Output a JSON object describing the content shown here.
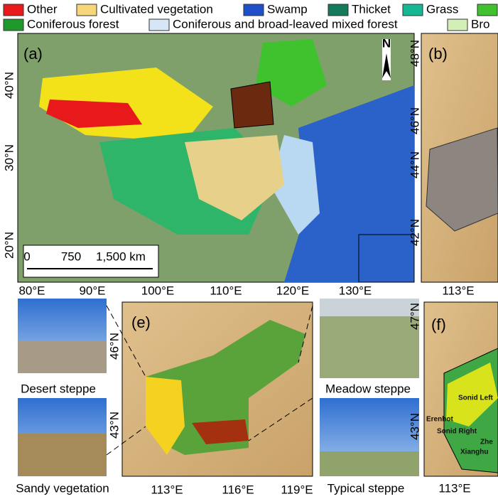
{
  "legend": [
    {
      "label": "Other",
      "color": "#e8191b"
    },
    {
      "label": "Cultivated vegetation",
      "color": "#f7d57a"
    },
    {
      "label": "Swamp",
      "color": "#1f4fc8"
    },
    {
      "label": "Thicket",
      "color": "#127a5a"
    },
    {
      "label": "Grass",
      "color": "#16b894"
    },
    {
      "color": "#3fc22d"
    },
    {
      "label": "Coniferous forest",
      "color": "#1f9a2a"
    },
    {
      "label": "Coniferous and broad-leaved mixed forest",
      "color": "#d6e6f7"
    },
    {
      "label": "Bro",
      "color": "#d3efb8"
    }
  ],
  "panel_a": {
    "label": "(a)",
    "north": "N",
    "lat_labels": [
      "40°N",
      "30°N",
      "20°N"
    ],
    "lon_labels": [
      "80°E",
      "90°E",
      "100°E",
      "110°E",
      "120°E",
      "130°E"
    ],
    "scale_bar": [
      "0",
      "750",
      "1,500 km"
    ]
  },
  "panel_b": {
    "label": "(b)",
    "lat_labels": [
      "48°N",
      "46°N",
      "44°N",
      "42°N"
    ],
    "lon_labels": [
      "113°E"
    ]
  },
  "panel_e": {
    "label": "(e)",
    "lat_labels": [
      "46°N",
      "43°N"
    ],
    "lon_labels": [
      "113°E",
      "116°E",
      "119°E"
    ]
  },
  "panel_f": {
    "label": "(f)",
    "lat_labels": [
      "47°N",
      "43°N"
    ],
    "lon_labels": [
      "113°E"
    ],
    "places": [
      "Sonid Left",
      "Erenhot",
      "Sonid Right",
      "Zhe",
      "Xianghu"
    ]
  },
  "photos": [
    "Desert steppe",
    "Meadow steppe",
    "Sandy vegetation",
    "Typical steppe"
  ]
}
